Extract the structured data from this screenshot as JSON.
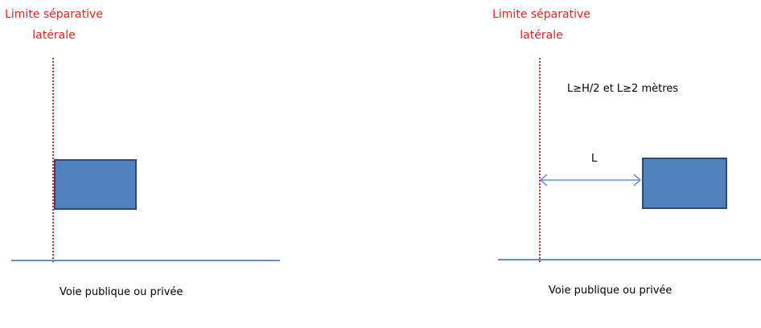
{
  "left_panel": {
    "limit_label_line1": "Limite séparative",
    "limit_label_line2": "latérale",
    "road_label": "Voie publique ou privée"
  },
  "right_panel": {
    "limit_label_line1": "Limite séparative",
    "limit_label_line2": "latérale",
    "rule_text": "L≥H/2 et L≥2 mètres",
    "distance_label": "L",
    "road_label": "Voie publique ou privée"
  },
  "colors": {
    "limit_label": "#ff1a1a",
    "limit_line": "#e8262a",
    "building_fill": "#4f81bd",
    "building_border": "#2e4a72",
    "road_line": "#6a8fcf",
    "arrow": "#6a8fcf"
  }
}
